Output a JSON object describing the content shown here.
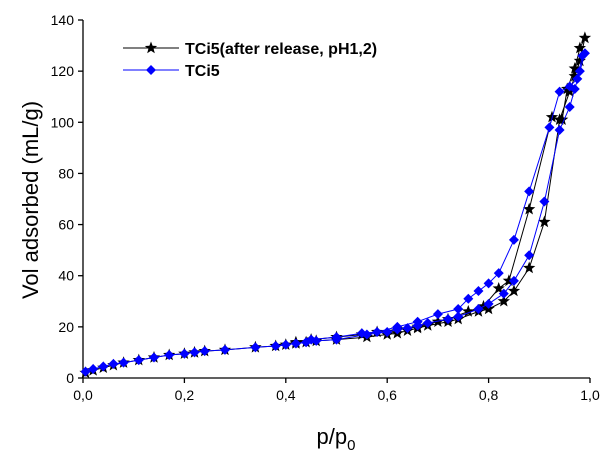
{
  "chart_data": {
    "type": "line",
    "xlabel": [
      "p/p",
      "0"
    ],
    "ylabel": "Vol adsorbed (mL/g)",
    "xlim": [
      0,
      1
    ],
    "ylim": [
      0,
      140
    ],
    "xticks": [
      {
        "value": 0,
        "label": "0,0"
      },
      {
        "value": 0.2,
        "label": "0,2"
      },
      {
        "value": 0.4,
        "label": "0,4"
      },
      {
        "value": 0.6,
        "label": "0,6"
      },
      {
        "value": 0.8,
        "label": "0,8"
      },
      {
        "value": 1,
        "label": "1,0"
      }
    ],
    "yticks": [
      0,
      20,
      40,
      60,
      80,
      100,
      120,
      140
    ],
    "legend": "upper left",
    "series": [
      {
        "name": "TCi5(after release, pH1,2)",
        "color": "#000000",
        "marker": "star",
        "x": [
          0.005,
          0.02,
          0.04,
          0.06,
          0.08,
          0.11,
          0.14,
          0.17,
          0.2,
          0.22,
          0.24,
          0.28,
          0.34,
          0.38,
          0.4,
          0.42,
          0.44,
          0.46,
          0.5,
          0.56,
          0.6,
          0.62,
          0.64,
          0.66,
          0.68,
          0.72,
          0.74,
          0.78,
          0.8,
          0.83,
          0.85,
          0.88,
          0.91,
          0.94,
          0.96,
          0.97,
          0.98,
          0.99,
          0.98,
          0.97,
          0.955,
          0.945,
          0.925,
          0.88,
          0.84,
          0.82,
          0.79,
          0.76,
          0.72,
          0.7,
          0.66,
          0.62,
          0.58,
          0.55,
          0.5,
          0.45,
          0.42
        ],
        "values": [
          2,
          3,
          4,
          5,
          6,
          7,
          8,
          9,
          9.5,
          10,
          10.5,
          11,
          12,
          12.5,
          13,
          13.5,
          14,
          14.5,
          15,
          16,
          17,
          17.5,
          18.5,
          19.5,
          20.5,
          22,
          23,
          26,
          27,
          30,
          34,
          43,
          61,
          101,
          112,
          118,
          124,
          133,
          129,
          121,
          113,
          101,
          102,
          66,
          38,
          35,
          28,
          26,
          23,
          22,
          20,
          19,
          18,
          17,
          16,
          15,
          14
        ]
      },
      {
        "name": "TCi5",
        "color": "#0000ff",
        "marker": "diamond",
        "x": [
          0.005,
          0.02,
          0.04,
          0.06,
          0.08,
          0.11,
          0.14,
          0.17,
          0.2,
          0.22,
          0.24,
          0.28,
          0.34,
          0.38,
          0.4,
          0.42,
          0.44,
          0.46,
          0.5,
          0.56,
          0.6,
          0.62,
          0.64,
          0.66,
          0.68,
          0.72,
          0.74,
          0.78,
          0.8,
          0.83,
          0.85,
          0.88,
          0.91,
          0.94,
          0.96,
          0.97,
          0.98,
          0.99,
          0.985,
          0.975,
          0.96,
          0.94,
          0.92,
          0.88,
          0.85,
          0.82,
          0.8,
          0.78,
          0.76,
          0.74,
          0.7,
          0.66,
          0.62,
          0.58,
          0.55,
          0.5,
          0.45
        ],
        "values": [
          2.5,
          3.5,
          4.5,
          5.5,
          6,
          7,
          8,
          9,
          9.5,
          10,
          10.5,
          11,
          12,
          12.5,
          13,
          13.5,
          14,
          14.5,
          15,
          17,
          18,
          19,
          19.5,
          20.5,
          21.5,
          23,
          24,
          27,
          29,
          33,
          38,
          48,
          69,
          97,
          106,
          113,
          120,
          127,
          126,
          117,
          114,
          112,
          98,
          73,
          54,
          41,
          37,
          34,
          31,
          27,
          25,
          22,
          20,
          18,
          17.5,
          16,
          15
        ]
      }
    ]
  }
}
